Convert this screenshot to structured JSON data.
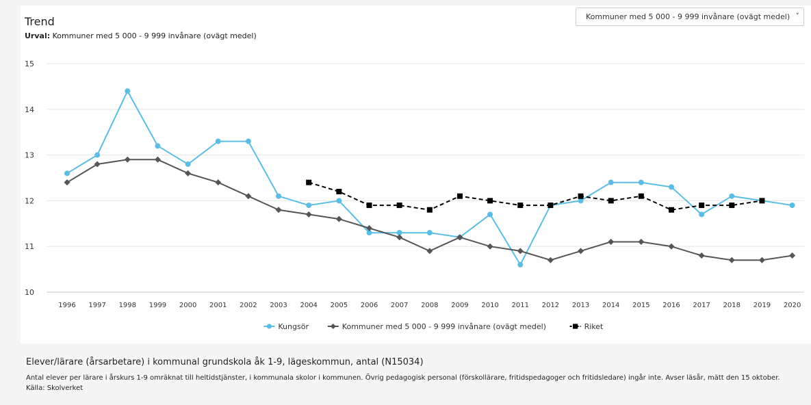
{
  "header": {
    "title": "Trend",
    "subtitle_prefix": "Urval:",
    "subtitle_value": "Kommuner med 5 000 - 9 999 invånare (ovägt medel)",
    "select_value": "Kommuner med 5 000 - 9 999 invånare (ovägt medel)"
  },
  "description": {
    "title": "Elever/lärare (årsarbetare) i kommunal grundskola åk 1-9, lägeskommun, antal (N15034)",
    "text": "Antal elever per lärare i årskurs 1-9 omräknat till heltidstjänster, i kommunala skolor i kommunen. Övrig pedagogisk personal (förskollärare, fritidspedagoger och fritidsledare) ingår inte. Avser läsår, mätt den 15 oktober. Källa: Skolverket"
  },
  "chart_data": {
    "type": "line",
    "title": "Trend",
    "xlabel": "",
    "ylabel": "",
    "ylim": [
      10,
      15
    ],
    "yticks": [
      10,
      11,
      12,
      13,
      14,
      15
    ],
    "grid": true,
    "legend_position": "bottom",
    "x": [
      "1996",
      "1997",
      "1998",
      "1999",
      "2000",
      "2001",
      "2002",
      "2003",
      "2004",
      "2005",
      "2006",
      "2007",
      "2008",
      "2009",
      "2010",
      "2011",
      "2012",
      "2013",
      "2014",
      "2015",
      "2016",
      "2017",
      "2018",
      "2019",
      "2020"
    ],
    "series": [
      {
        "name": "Kungsör",
        "color": "#5bbde4",
        "marker": "circle",
        "dash": "solid",
        "values": [
          12.6,
          13.0,
          14.4,
          13.2,
          12.8,
          13.3,
          13.3,
          12.1,
          11.9,
          12.0,
          11.3,
          11.3,
          11.3,
          11.2,
          11.7,
          10.6,
          11.9,
          12.0,
          12.4,
          12.4,
          12.3,
          11.7,
          12.1,
          12.0,
          11.9
        ]
      },
      {
        "name": "Kommuner med 5 000 - 9 999 invånare (ovägt medel)",
        "color": "#555555",
        "marker": "diamond",
        "dash": "solid",
        "values": [
          12.4,
          12.8,
          12.9,
          12.9,
          12.6,
          12.4,
          12.1,
          11.8,
          11.7,
          11.6,
          11.4,
          11.2,
          10.9,
          11.2,
          11.0,
          10.9,
          10.7,
          10.9,
          11.1,
          11.1,
          11.0,
          10.8,
          10.7,
          10.7,
          10.8
        ]
      },
      {
        "name": "Riket",
        "color": "#000000",
        "marker": "square",
        "dash": "dashed",
        "values": [
          null,
          null,
          null,
          null,
          null,
          null,
          null,
          null,
          12.4,
          12.2,
          11.9,
          11.9,
          11.8,
          12.1,
          12.0,
          11.9,
          11.9,
          12.1,
          12.0,
          12.1,
          11.8,
          11.9,
          11.9,
          12.0,
          null
        ]
      }
    ]
  }
}
